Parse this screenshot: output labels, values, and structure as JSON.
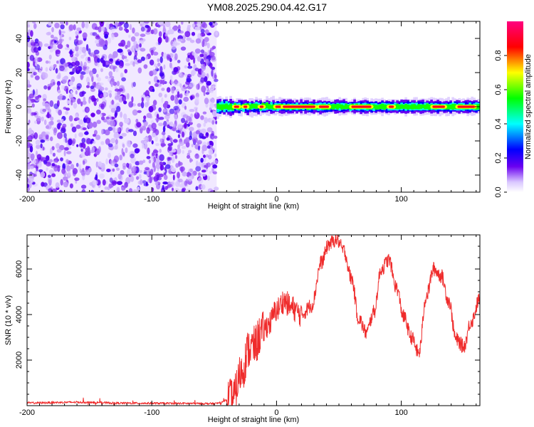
{
  "title": "YM08.2025.290.04.42.G17",
  "colors": {
    "snr_line": "#ef2b2b",
    "noise_purple": "#6a00f0",
    "axis": "#000000"
  },
  "chart_data": [
    {
      "type": "heatmap",
      "name": "spectrogram",
      "xlabel": "Height of straight line (km)",
      "ylabel": "Frequency (Hz)",
      "xlim": [
        -200,
        163
      ],
      "ylim": [
        -50,
        50
      ],
      "x_ticks": [
        -200,
        -100,
        0,
        100
      ],
      "x_tick_labels": [
        "-200",
        "-100",
        "0",
        "100"
      ],
      "y_ticks": [
        -40,
        -20,
        0,
        20,
        40
      ],
      "y_tick_labels": [
        "-40",
        "-20",
        "0",
        "20",
        "40"
      ],
      "noise_region_x": [
        -200,
        -48
      ],
      "signal_region_x": [
        -48,
        163
      ],
      "signal_center_frequency_hz": 0,
      "colorbar": {
        "label": "Normalized spectral amplitude",
        "range": [
          0,
          1
        ],
        "ticks": [
          0.0,
          0.2,
          0.4,
          0.6,
          0.8
        ],
        "tick_labels": [
          "0.0",
          "0.2",
          "0.4",
          "0.6",
          "0.8"
        ],
        "stops": [
          {
            "v": 0.0,
            "color": "#ffffff"
          },
          {
            "v": 0.06,
            "color": "#d9c6ff"
          },
          {
            "v": 0.15,
            "color": "#6a00f0"
          },
          {
            "v": 0.25,
            "color": "#0000ff"
          },
          {
            "v": 0.4,
            "color": "#00ffff"
          },
          {
            "v": 0.55,
            "color": "#00ff00"
          },
          {
            "v": 0.7,
            "color": "#ffff00"
          },
          {
            "v": 0.85,
            "color": "#ff0000"
          },
          {
            "v": 1.0,
            "color": "#ff0080"
          }
        ]
      }
    },
    {
      "type": "line",
      "name": "snr",
      "xlabel": "Height of straight line (km)",
      "ylabel": "SNR (10 * v/v)",
      "xlim": [
        -200,
        163
      ],
      "ylim": [
        0,
        7500
      ],
      "x_ticks": [
        -200,
        -100,
        0,
        100
      ],
      "x_tick_labels": [
        "-200",
        "-100",
        "0",
        "100"
      ],
      "y_ticks": [
        2000,
        4000,
        6000
      ],
      "y_tick_labels": [
        "2000",
        "4000",
        "6000"
      ],
      "series": [
        {
          "name": "SNR",
          "x": [
            -200,
            -160,
            -120,
            -80,
            -50,
            -35,
            -28,
            -22,
            -18,
            -12,
            -6,
            0,
            6,
            12,
            20,
            28,
            36,
            42,
            48,
            54,
            60,
            66,
            72,
            78,
            84,
            90,
            96,
            102,
            108,
            114,
            120,
            126,
            132,
            138,
            144,
            150,
            156,
            163
          ],
          "y": [
            120,
            150,
            110,
            100,
            90,
            300,
            1500,
            2500,
            2600,
            3200,
            3600,
            4200,
            4600,
            4300,
            4000,
            4400,
            6300,
            7100,
            7300,
            6800,
            5600,
            3800,
            3200,
            4100,
            6000,
            6400,
            5200,
            3900,
            3000,
            2300,
            4800,
            6000,
            5700,
            4600,
            2900,
            2600,
            3700,
            4700
          ]
        }
      ]
    }
  ]
}
